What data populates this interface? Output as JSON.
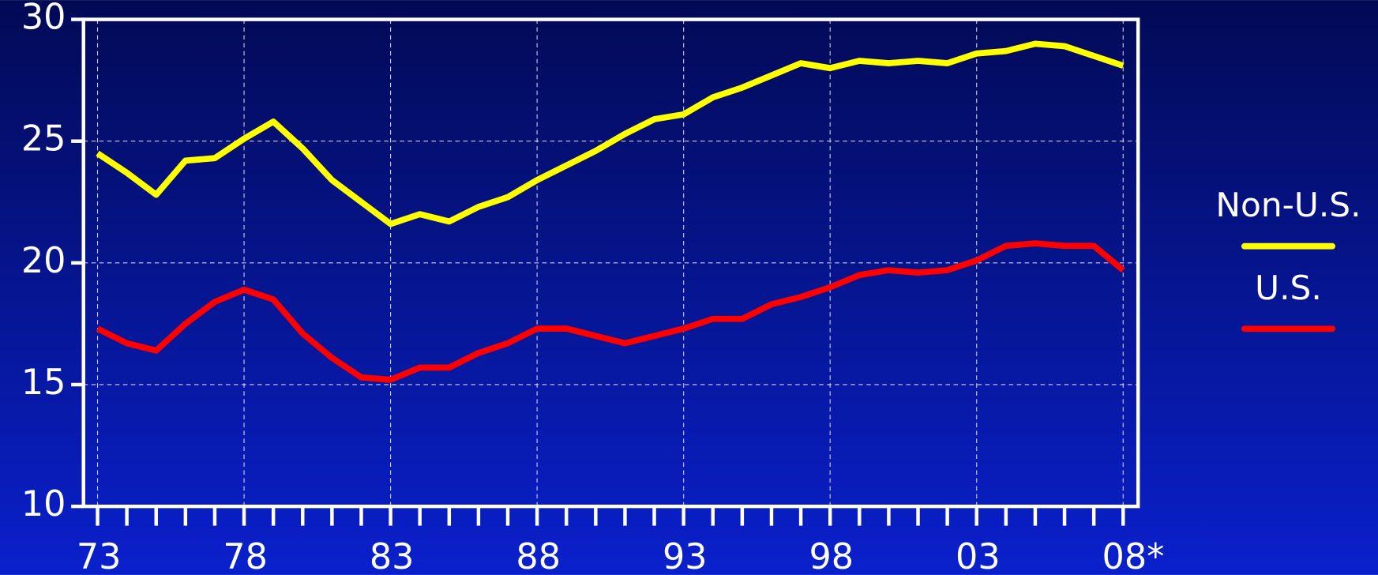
{
  "chart_data": {
    "type": "line",
    "categories": [
      "73",
      null,
      null,
      null,
      null,
      "78",
      null,
      null,
      null,
      null,
      "83",
      null,
      null,
      null,
      null,
      "88",
      null,
      null,
      null,
      null,
      "93",
      null,
      null,
      null,
      null,
      "98",
      null,
      null,
      null,
      null,
      "03",
      null,
      null,
      null,
      null,
      "08*"
    ],
    "series": [
      {
        "name": "Non-U.S.",
        "color": "#ffff00",
        "values": [
          24.5,
          23.7,
          22.8,
          24.2,
          24.3,
          25.1,
          25.8,
          24.7,
          23.4,
          22.5,
          21.6,
          22.0,
          21.7,
          22.3,
          22.7,
          23.4,
          24.0,
          24.6,
          25.3,
          25.9,
          26.1,
          26.8,
          27.2,
          27.7,
          28.2,
          28.0,
          28.3,
          28.2,
          28.3,
          28.2,
          28.6,
          28.7,
          29.0,
          28.9,
          28.5,
          28.1
        ]
      },
      {
        "name": "U.S.",
        "color": "#ff0000",
        "values": [
          17.3,
          16.7,
          16.4,
          17.5,
          18.4,
          18.9,
          18.5,
          17.1,
          16.1,
          15.3,
          15.2,
          15.7,
          15.7,
          16.3,
          16.7,
          17.3,
          17.3,
          17.0,
          16.7,
          17.0,
          17.3,
          17.7,
          17.7,
          18.3,
          18.6,
          19.0,
          19.5,
          19.7,
          19.6,
          19.7,
          20.1,
          20.7,
          20.8,
          20.7,
          20.7,
          19.7
        ]
      }
    ],
    "ylim": [
      10,
      30
    ],
    "yticks": [
      10,
      15,
      20,
      25,
      30
    ],
    "grid": true,
    "legend": "right"
  }
}
